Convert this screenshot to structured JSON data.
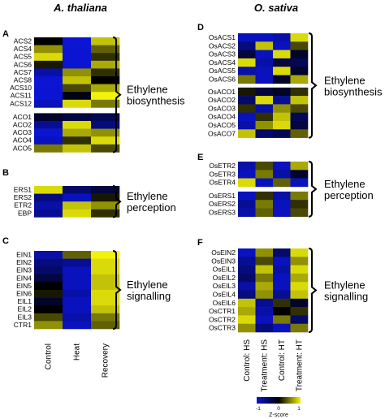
{
  "colors": {
    "low": "#0a14d2",
    "mid": "#000000",
    "high": "#f2f20a",
    "bracket": "#000000"
  },
  "species": {
    "left": "A. thaliana",
    "right": "O. sativa"
  },
  "panel_letters": [
    "A",
    "B",
    "C",
    "D",
    "E",
    "F"
  ],
  "colorbar": {
    "ticks": [
      "-1",
      "0",
      "1"
    ],
    "title": "Z-score",
    "range": [
      -1,
      1
    ]
  },
  "chart_data": [
    {
      "type": "heatmap",
      "panel": "A",
      "group_label": [
        "Ethylene",
        "biosynthesis"
      ],
      "x": [
        "Control",
        "Heat",
        "Recovery"
      ],
      "blocks": [
        {
          "rows": [
            "ACS2",
            "ACS4",
            "ACS5",
            "ACS6",
            "ACS7",
            "ACS8",
            "ACS10",
            "ACS11",
            "ACS12"
          ],
          "values": [
            [
              0.0,
              -1.0,
              0.8
            ],
            [
              0.6,
              -1.0,
              0.4
            ],
            [
              0.9,
              -1.0,
              0.2
            ],
            [
              0.1,
              -1.0,
              0.7
            ],
            [
              -0.8,
              0.6,
              0.2
            ],
            [
              -1.0,
              0.8,
              0.0
            ],
            [
              -1.0,
              0.3,
              0.7
            ],
            [
              -1.0,
              -0.1,
              1.0
            ],
            [
              -0.9,
              0.9,
              0.5
            ]
          ]
        },
        {
          "rows": [
            "ACO1",
            "ACO2",
            "ACO3",
            "ACO4",
            "ACO5"
          ],
          "values": [
            [
              -0.2,
              -0.3,
              -0.4
            ],
            [
              -0.7,
              0.9,
              -0.6
            ],
            [
              -1.0,
              0.7,
              0.6
            ],
            [
              -0.9,
              0.2,
              0.9
            ],
            [
              0.5,
              0.8,
              0.3
            ]
          ]
        }
      ]
    },
    {
      "type": "heatmap",
      "panel": "B",
      "group_label": [
        "Ethylene",
        "perception"
      ],
      "x": [
        "Control",
        "Heat",
        "Recovery"
      ],
      "blocks": [
        {
          "rows": [
            "ERS1",
            "ERS2",
            "ETR2",
            "EBP"
          ],
          "values": [
            [
              0.9,
              -0.5,
              -0.3
            ],
            [
              -0.6,
              -0.9,
              0.1
            ],
            [
              -0.8,
              0.8,
              0.6
            ],
            [
              -0.7,
              0.9,
              0.2
            ]
          ]
        }
      ]
    },
    {
      "type": "heatmap",
      "panel": "C",
      "group_label": [
        "Ethylene",
        "signalling"
      ],
      "x": [
        "Control",
        "Heat",
        "Recovery"
      ],
      "blocks": [
        {
          "rows": [
            "EIN1",
            "EIN2",
            "EIN3",
            "EIN4",
            "EIN5",
            "EIN6",
            "EIL1",
            "EIL2",
            "EIL3",
            "CTR1"
          ],
          "values": [
            [
              -0.8,
              0.4,
              1.0
            ],
            [
              -0.6,
              -0.7,
              0.9
            ],
            [
              -0.5,
              -0.9,
              0.9
            ],
            [
              -0.3,
              -0.9,
              0.8
            ],
            [
              0.0,
              -0.9,
              0.8
            ],
            [
              0.1,
              -0.8,
              0.9
            ],
            [
              -0.2,
              -0.9,
              0.9
            ],
            [
              0.0,
              -0.9,
              0.8
            ],
            [
              0.3,
              -0.8,
              0.5
            ],
            [
              0.6,
              -0.9,
              0.4
            ]
          ]
        }
      ]
    },
    {
      "type": "heatmap",
      "panel": "D",
      "group_label": [
        "Ethylene",
        "biosynthesis"
      ],
      "x": [
        "Control: HS",
        "Treatment: HS",
        "Control: HT",
        "Treatment: HT"
      ],
      "blocks": [
        {
          "rows": [
            "OsACS1",
            "OsACS2",
            "OsACS3",
            "OsACS4",
            "OsACS5",
            "OsACS6"
          ],
          "values": [
            [
              -0.9,
              -0.9,
              -0.8,
              0.9
            ],
            [
              -0.6,
              0.8,
              -0.9,
              0.3
            ],
            [
              -0.3,
              -0.9,
              0.9,
              -0.2
            ],
            [
              0.9,
              -0.8,
              -0.3,
              -0.4
            ],
            [
              -0.8,
              -0.9,
              0.9,
              -0.2
            ],
            [
              0.5,
              -0.9,
              -0.2,
              0.7
            ]
          ]
        },
        {
          "rows": [
            "OsACO1",
            "OsACO2",
            "OsACO3",
            "OsACO4",
            "OsACO5",
            "OsACO7"
          ],
          "values": [
            [
              0.1,
              -0.3,
              -0.2,
              0.2
            ],
            [
              -0.5,
              0.9,
              -0.7,
              0.8
            ],
            [
              0.2,
              -0.8,
              0.6,
              0.3
            ],
            [
              -0.9,
              0.2,
              0.8,
              -0.4
            ],
            [
              -0.8,
              0.6,
              0.9,
              -0.3
            ],
            [
              0.8,
              -0.5,
              -0.4,
              0.4
            ]
          ]
        }
      ]
    },
    {
      "type": "heatmap",
      "panel": "E",
      "group_label": [
        "Ethylene",
        "perception"
      ],
      "x": [
        "Control: HS",
        "Treatment: HS",
        "Control: HT",
        "Treatment: HT"
      ],
      "blocks": [
        {
          "rows": [
            "OsETR2",
            "OsETR3",
            "OsETR4"
          ],
          "values": [
            [
              -0.8,
              0.3,
              -0.9,
              0.7
            ],
            [
              -0.9,
              0.5,
              -0.8,
              -0.2
            ],
            [
              0.9,
              -0.9,
              0.4,
              -0.9
            ]
          ]
        },
        {
          "rows": [
            "OsERS1",
            "OsERS2",
            "OsERS3"
          ],
          "values": [
            [
              -0.9,
              0.2,
              -0.8,
              0.5
            ],
            [
              -0.7,
              0.5,
              -0.9,
              0.2
            ],
            [
              -0.8,
              0.4,
              -0.9,
              0.3
            ]
          ]
        }
      ]
    },
    {
      "type": "heatmap",
      "panel": "F",
      "group_label": [
        "Ethylene",
        "signalling"
      ],
      "x": [
        "Control: HS",
        "Treatment: HS",
        "Control: HT",
        "Treatment: HT"
      ],
      "blocks": [
        {
          "rows": [
            "OsEIN2",
            "OsEIN3",
            "OsEIL1",
            "OsEIL2",
            "OsEIL3",
            "OsEIL4",
            "OsEIL6",
            "OsCTR1",
            "OsCTR2",
            "OsCTR3"
          ],
          "values": [
            [
              -0.9,
              0.6,
              -0.5,
              0.9
            ],
            [
              -0.7,
              0.3,
              -0.9,
              0.6
            ],
            [
              -0.6,
              0.8,
              -0.8,
              0.9
            ],
            [
              -0.5,
              0.5,
              -0.9,
              0.7
            ],
            [
              -0.8,
              0.7,
              -0.9,
              0.9
            ],
            [
              -0.6,
              0.6,
              -0.7,
              0.8
            ],
            [
              0.8,
              -0.7,
              0.2,
              -0.2
            ],
            [
              0.7,
              -0.8,
              0.0,
              0.2
            ],
            [
              0.9,
              -0.9,
              0.5,
              -0.5
            ],
            [
              0.6,
              -0.6,
              -0.9,
              0.5
            ]
          ]
        }
      ]
    }
  ]
}
